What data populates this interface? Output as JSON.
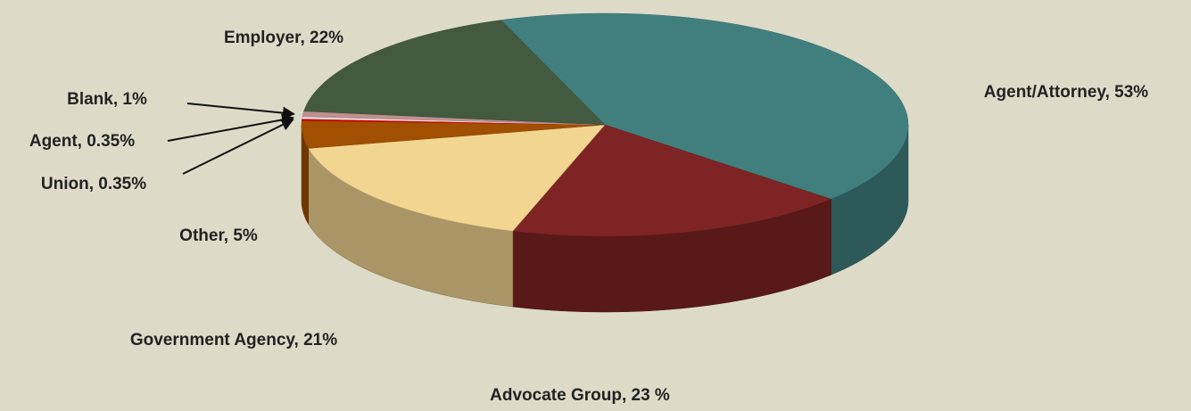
{
  "chart_data": {
    "type": "pie3d",
    "values": [
      53,
      23,
      21,
      5,
      0.35,
      0.35,
      1,
      22
    ],
    "value_labels": [
      "Agent/Attorney, 53%",
      "Advocate Group, 23 %",
      "Government Agency, 21%",
      "Other, 5%",
      "Union, 0.35%",
      "Agent, 0.35%",
      "Blank, 1%",
      "Employer, 22%"
    ],
    "colors": [
      "#417f7f",
      "#7f2424",
      "#f2d591",
      "#a05000",
      "#e00000",
      "#f2f2f2",
      "#c09090",
      "#445a40"
    ]
  }
}
